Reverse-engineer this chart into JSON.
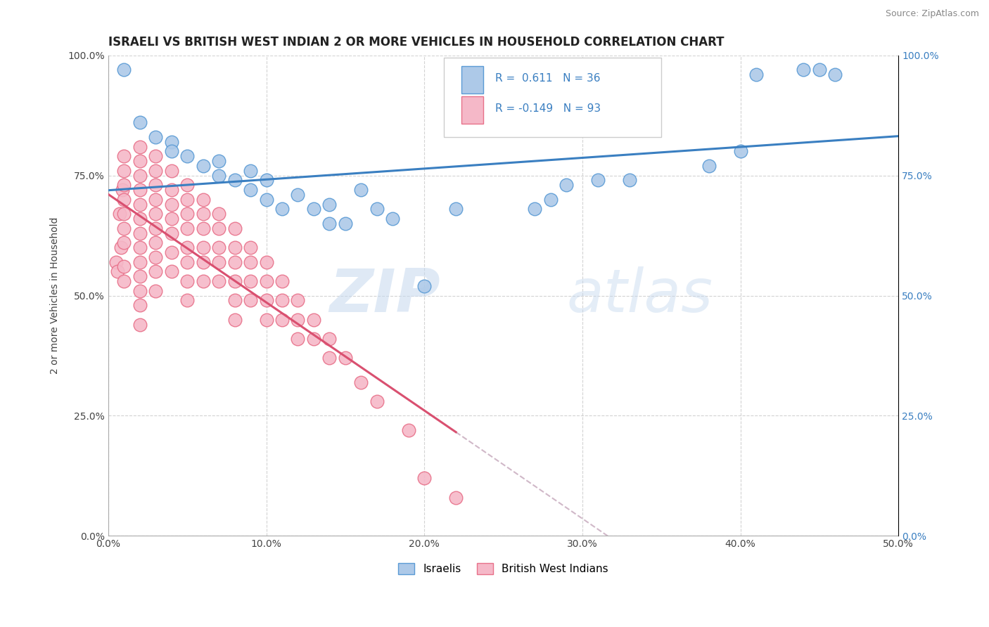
{
  "title": "ISRAELI VS BRITISH WEST INDIAN 2 OR MORE VEHICLES IN HOUSEHOLD CORRELATION CHART",
  "source": "Source: ZipAtlas.com",
  "ylabel": "2 or more Vehicles in Household",
  "xmin": 0.0,
  "xmax": 0.5,
  "ymin": 0.0,
  "ymax": 1.0,
  "xtick_labels": [
    "0.0%",
    "10.0%",
    "20.0%",
    "30.0%",
    "40.0%",
    "50.0%"
  ],
  "xtick_vals": [
    0.0,
    0.1,
    0.2,
    0.3,
    0.4,
    0.5
  ],
  "ytick_labels": [
    "0.0%",
    "25.0%",
    "50.0%",
    "75.0%",
    "100.0%"
  ],
  "ytick_vals": [
    0.0,
    0.25,
    0.5,
    0.75,
    1.0
  ],
  "legend_labels": [
    "Israelis",
    "British West Indians"
  ],
  "israeli_color": "#adc9e8",
  "bwi_color": "#f5b8c8",
  "israeli_edge_color": "#5b9bd5",
  "bwi_edge_color": "#e8718a",
  "israeli_line_color": "#3a7fc1",
  "bwi_line_color": "#d95070",
  "dashed_line_color": "#d0b8c8",
  "R_israeli": 0.611,
  "N_israeli": 36,
  "R_bwi": -0.149,
  "N_bwi": 93,
  "israeli_x": [
    0.01,
    0.02,
    0.03,
    0.04,
    0.04,
    0.05,
    0.06,
    0.07,
    0.07,
    0.08,
    0.09,
    0.09,
    0.1,
    0.1,
    0.11,
    0.12,
    0.13,
    0.14,
    0.14,
    0.15,
    0.16,
    0.17,
    0.18,
    0.2,
    0.22,
    0.27,
    0.28,
    0.29,
    0.31,
    0.33,
    0.38,
    0.4,
    0.41,
    0.44,
    0.45,
    0.46
  ],
  "israeli_y": [
    0.97,
    0.86,
    0.83,
    0.82,
    0.8,
    0.79,
    0.77,
    0.75,
    0.78,
    0.74,
    0.72,
    0.76,
    0.7,
    0.74,
    0.68,
    0.71,
    0.68,
    0.65,
    0.69,
    0.65,
    0.72,
    0.68,
    0.66,
    0.52,
    0.68,
    0.68,
    0.7,
    0.73,
    0.74,
    0.74,
    0.77,
    0.8,
    0.96,
    0.97,
    0.97,
    0.96
  ],
  "bwi_x": [
    0.005,
    0.006,
    0.007,
    0.008,
    0.009,
    0.01,
    0.01,
    0.01,
    0.01,
    0.01,
    0.01,
    0.01,
    0.01,
    0.01,
    0.02,
    0.02,
    0.02,
    0.02,
    0.02,
    0.02,
    0.02,
    0.02,
    0.02,
    0.02,
    0.02,
    0.02,
    0.02,
    0.03,
    0.03,
    0.03,
    0.03,
    0.03,
    0.03,
    0.03,
    0.03,
    0.03,
    0.03,
    0.04,
    0.04,
    0.04,
    0.04,
    0.04,
    0.04,
    0.04,
    0.05,
    0.05,
    0.05,
    0.05,
    0.05,
    0.05,
    0.05,
    0.05,
    0.06,
    0.06,
    0.06,
    0.06,
    0.06,
    0.06,
    0.07,
    0.07,
    0.07,
    0.07,
    0.07,
    0.08,
    0.08,
    0.08,
    0.08,
    0.08,
    0.08,
    0.09,
    0.09,
    0.09,
    0.09,
    0.1,
    0.1,
    0.1,
    0.1,
    0.11,
    0.11,
    0.11,
    0.12,
    0.12,
    0.12,
    0.13,
    0.13,
    0.14,
    0.14,
    0.15,
    0.16,
    0.17,
    0.19,
    0.2,
    0.22
  ],
  "bwi_y": [
    0.57,
    0.55,
    0.67,
    0.6,
    0.72,
    0.79,
    0.76,
    0.73,
    0.7,
    0.67,
    0.64,
    0.61,
    0.56,
    0.53,
    0.81,
    0.78,
    0.75,
    0.72,
    0.69,
    0.66,
    0.63,
    0.6,
    0.57,
    0.54,
    0.51,
    0.48,
    0.44,
    0.79,
    0.76,
    0.73,
    0.7,
    0.67,
    0.64,
    0.61,
    0.58,
    0.55,
    0.51,
    0.76,
    0.72,
    0.69,
    0.66,
    0.63,
    0.59,
    0.55,
    0.73,
    0.7,
    0.67,
    0.64,
    0.6,
    0.57,
    0.53,
    0.49,
    0.7,
    0.67,
    0.64,
    0.6,
    0.57,
    0.53,
    0.67,
    0.64,
    0.6,
    0.57,
    0.53,
    0.64,
    0.6,
    0.57,
    0.53,
    0.49,
    0.45,
    0.6,
    0.57,
    0.53,
    0.49,
    0.57,
    0.53,
    0.49,
    0.45,
    0.53,
    0.49,
    0.45,
    0.49,
    0.45,
    0.41,
    0.45,
    0.41,
    0.41,
    0.37,
    0.37,
    0.32,
    0.28,
    0.22,
    0.12,
    0.08
  ],
  "watermark_zip": "ZIP",
  "watermark_atlas": "atlas",
  "background_color": "#ffffff",
  "grid_color": "#c8c8c8",
  "title_fontsize": 12,
  "axis_fontsize": 10,
  "tick_fontsize": 10,
  "legend_fontsize": 11
}
